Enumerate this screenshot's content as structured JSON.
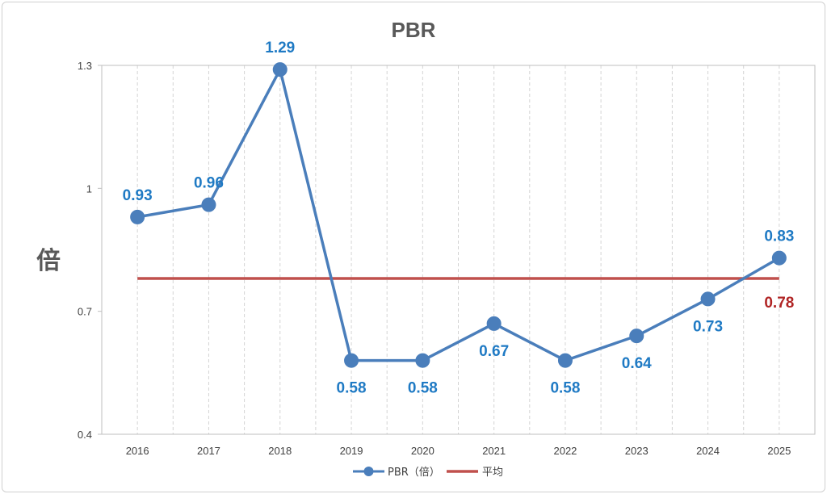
{
  "chart_data": {
    "type": "line",
    "title": "PBR",
    "ylabel": "倍",
    "xlabel": "",
    "categories": [
      "2016",
      "2017",
      "2018",
      "2019",
      "2020",
      "2021",
      "2022",
      "2023",
      "2024",
      "2025"
    ],
    "ylim": [
      0.4,
      1.3
    ],
    "yticks": [
      0.4,
      0.7,
      1,
      1.3
    ],
    "ytick_labels": [
      "0.4",
      "0.7",
      "1",
      "1.3"
    ],
    "grid": "vertical dashed",
    "legend_position": "bottom",
    "series": [
      {
        "name": "PBR（倍）",
        "values": [
          0.93,
          0.96,
          1.29,
          0.58,
          0.58,
          0.67,
          0.58,
          0.64,
          0.73,
          0.83
        ],
        "labels": [
          "0.93",
          "0.96",
          "1.29",
          "0.58",
          "0.58",
          "0.67",
          "0.58",
          "0.64",
          "0.73",
          "0.83"
        ],
        "color": "#4a7ebb",
        "label_color": "#1f7ac4",
        "marker": "circle"
      },
      {
        "name": "平均",
        "value": 0.78,
        "label": "0.78",
        "color": "#c0504d",
        "label_color": "#b02424"
      }
    ]
  }
}
